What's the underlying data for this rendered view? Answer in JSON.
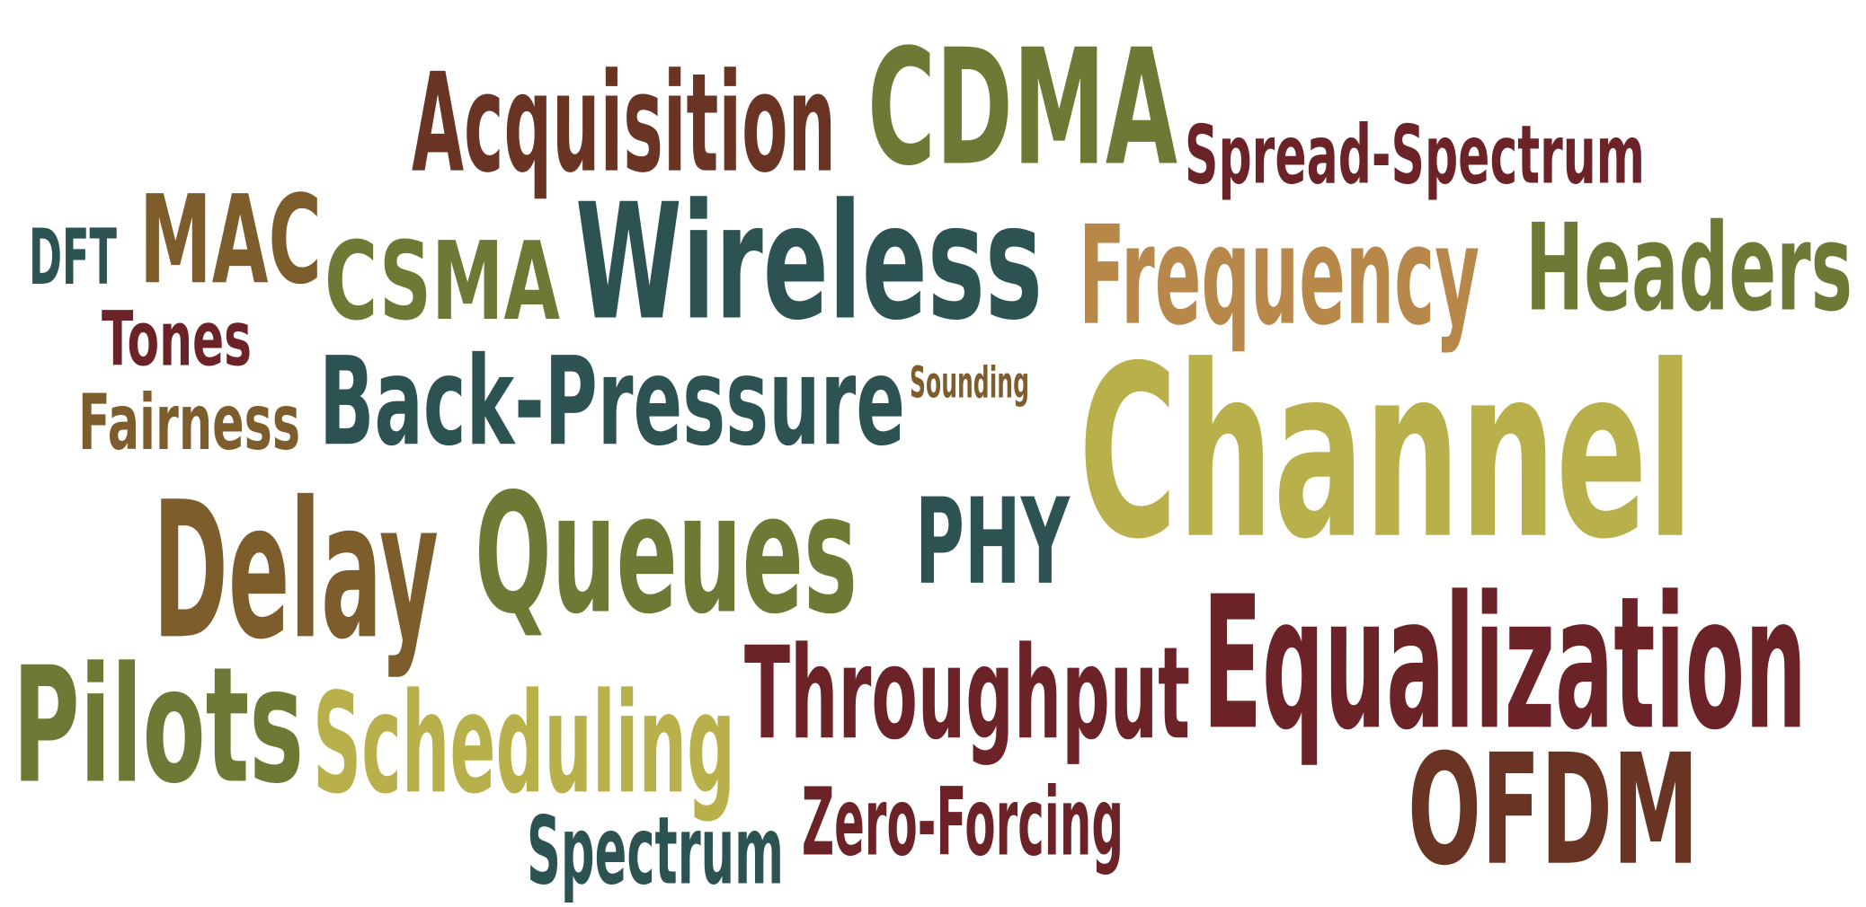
{
  "colors": {
    "dark_teal": "#2c5352",
    "dark_red": "#6c2327",
    "olive": "#6f7935",
    "brown": "#6a3424",
    "ochre": "#7e5d2c",
    "tan": "#b8874a",
    "mustard": "#b8b04a"
  },
  "words": {
    "acquisition": "Acquisition",
    "cdma": "CDMA",
    "spread_spectrum": "Spread-Spectrum",
    "dft": "DFT",
    "mac": "MAC",
    "csma": "CSMA",
    "wireless": "Wireless",
    "frequency": "Frequency",
    "headers": "Headers",
    "tones": "Tones",
    "fairness": "Fairness",
    "back_pressure": "Back-Pressure",
    "sounding": "Sounding",
    "channel": "Channel",
    "delay": "Delay",
    "queues": "Queues",
    "phy": "PHY",
    "equalization": "Equalization",
    "pilots": "Pilots",
    "scheduling": "Scheduling",
    "throughput": "Throughput",
    "ofdm": "OFDM",
    "spectrum": "Spectrum",
    "zero_forcing": "Zero-Forcing"
  }
}
